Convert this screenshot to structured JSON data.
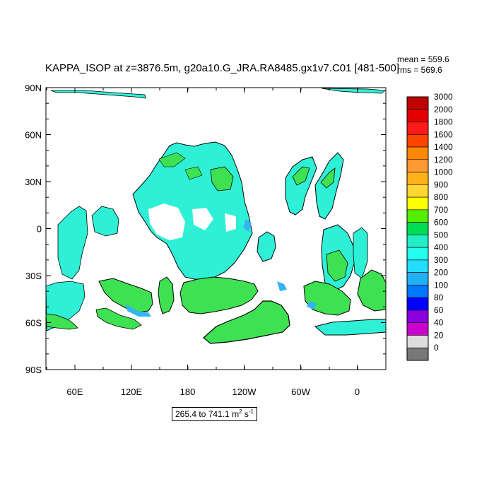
{
  "figure": {
    "title": "KAPPA_ISOP at z=3876.5m, g20a10.G_JRA.RA8485.gx1v7.C01 [481-500]",
    "mean_label": "mean = 559.6",
    "rms_label": "rms = 569.6",
    "range_label": "265.4 to 741.1 m",
    "units_m_exp": "2",
    "units_s": " s",
    "units_s_exp": "-1"
  },
  "map": {
    "lat_ticks": [
      "90N",
      "60N",
      "30N",
      "0",
      "30S",
      "60S",
      "90S"
    ],
    "lon_ticks": [
      "60E",
      "120E",
      "180",
      "120W",
      "60W",
      "0"
    ],
    "colors": {
      "land": "#ffffff",
      "cyan": "#2ef0d6",
      "green": "#3de152",
      "lightblue": "#34b4f0"
    }
  },
  "colorbar": {
    "levels": [
      "3000",
      "2000",
      "1800",
      "1600",
      "1400",
      "1200",
      "1000",
      "900",
      "800",
      "700",
      "600",
      "500",
      "400",
      "300",
      "200",
      "100",
      "80",
      "60",
      "40",
      "20",
      "0"
    ],
    "colors": [
      "#c00000",
      "#e30000",
      "#ff1a1a",
      "#ff4400",
      "#ff8800",
      "#ff9933",
      "#ffb21a",
      "#ffd633",
      "#ffff00",
      "#55ee00",
      "#00dd55",
      "#22eec8",
      "#22ffee",
      "#22ddff",
      "#22b0f5",
      "#0077ff",
      "#0000ff",
      "#8800dd",
      "#cc00cc",
      "#dddddd",
      "#777777"
    ]
  }
}
